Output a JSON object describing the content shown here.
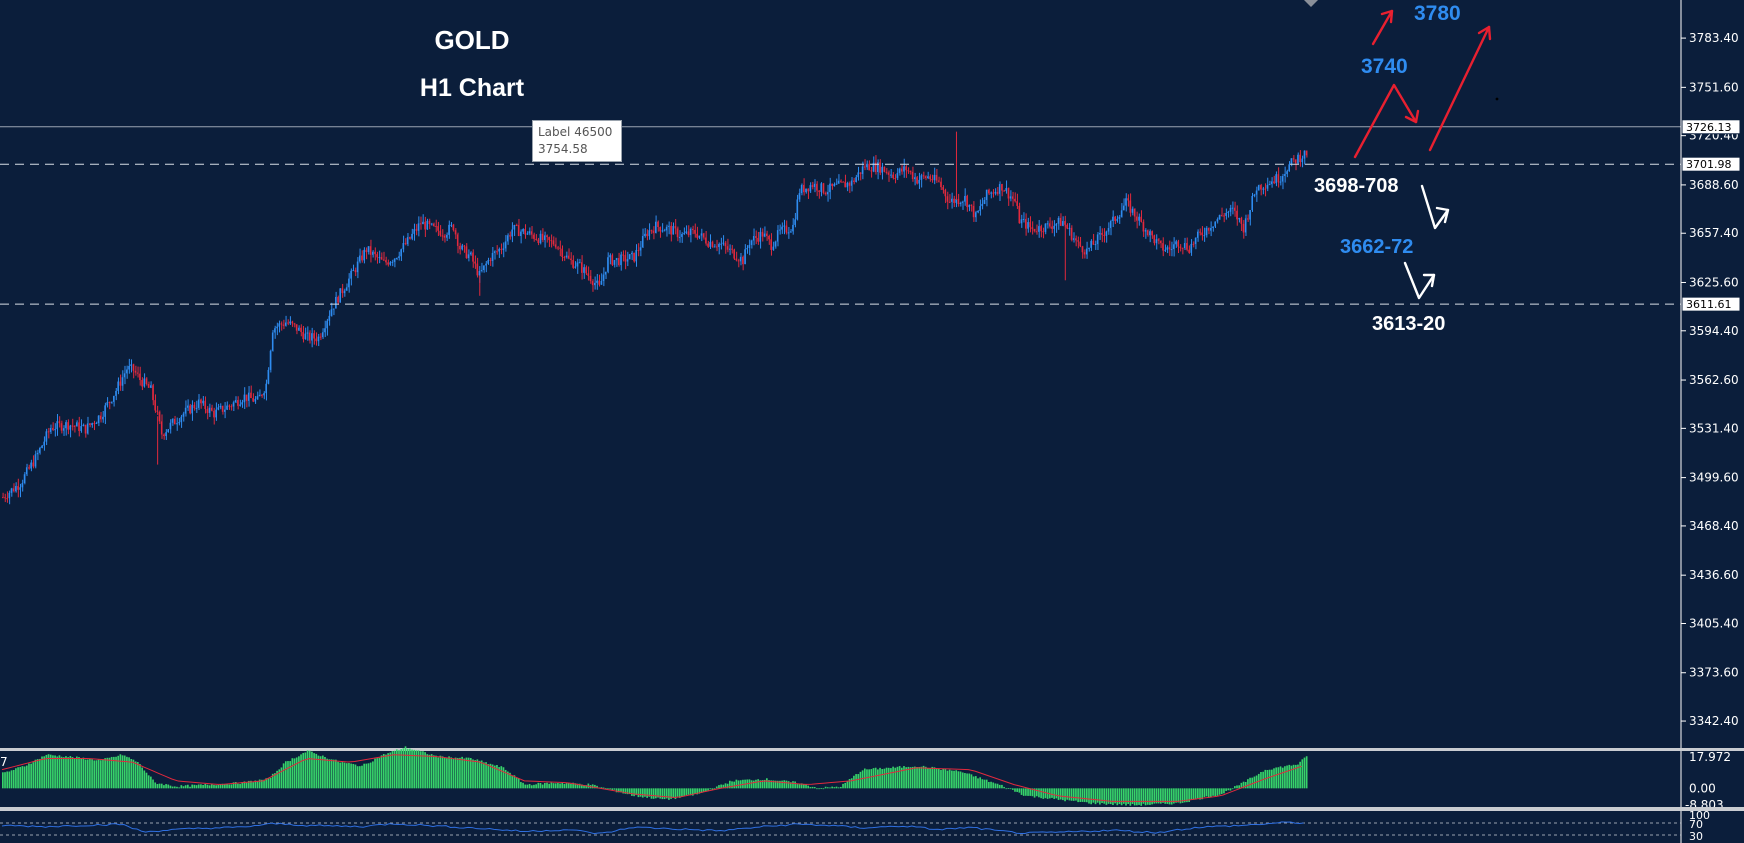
{
  "title": {
    "symbol": "GOLD",
    "timeframe": "H1 Chart"
  },
  "tooltip": {
    "label": "Label 46500",
    "value": "3754.58"
  },
  "annotations": {
    "target_3780": "3780",
    "target_3740": "3740",
    "level_3698": "3698-708",
    "level_3662": "3662-72",
    "level_3613": "3613-20"
  },
  "colors": {
    "background": "#0b1e3b",
    "bull": "#2f8cf0",
    "bear": "#e2293d",
    "histogram": "#37d36a",
    "signal": "#e2293d",
    "rsi": "#2f6fe0",
    "annotation_blue": "#2f8cf0",
    "arrow_red": "#e82030",
    "grid_dash": "#d8dde6"
  },
  "chart_data": [
    {
      "type": "candlestick",
      "symbol": "GOLD",
      "timeframe": "H1",
      "y_axis_ticks": [
        "3783.40",
        "3751.60",
        "3720.40",
        "3688.60",
        "3657.40",
        "3625.60",
        "3594.40",
        "3562.60",
        "3531.40",
        "3499.60",
        "3468.40",
        "3436.60",
        "3405.40",
        "3373.60",
        "3342.40"
      ],
      "ylim": [
        3325,
        3808
      ],
      "price_labels": {
        "current": "3726.13",
        "resistance": "3701.98",
        "support": "3611.61"
      },
      "horizontal_lines": [
        3726.13,
        3701.98,
        3611.61
      ],
      "close_path": [
        [
          0,
          3487
        ],
        [
          8,
          3496
        ],
        [
          15,
          3512
        ],
        [
          22,
          3532
        ],
        [
          30,
          3534
        ],
        [
          38,
          3531
        ],
        [
          45,
          3540
        ],
        [
          52,
          3556
        ],
        [
          57,
          3570
        ],
        [
          60,
          3569
        ],
        [
          63,
          3563
        ],
        [
          68,
          3556
        ],
        [
          73,
          3528
        ],
        [
          82,
          3540
        ],
        [
          90,
          3548
        ],
        [
          97,
          3541
        ],
        [
          104,
          3546
        ],
        [
          111,
          3552
        ],
        [
          117,
          3549
        ],
        [
          121,
          3560
        ],
        [
          124,
          3596
        ],
        [
          130,
          3600
        ],
        [
          135,
          3596
        ],
        [
          140,
          3590
        ],
        [
          145,
          3590
        ],
        [
          151,
          3609
        ],
        [
          160,
          3630
        ],
        [
          167,
          3647
        ],
        [
          175,
          3638
        ],
        [
          180,
          3642
        ],
        [
          186,
          3652
        ],
        [
          192,
          3664
        ],
        [
          198,
          3660
        ],
        [
          203,
          3658
        ],
        [
          207,
          3662
        ],
        [
          210,
          3648
        ],
        [
          215,
          3642
        ],
        [
          219,
          3630
        ],
        [
          224,
          3642
        ],
        [
          229,
          3648
        ],
        [
          234,
          3660
        ],
        [
          240,
          3658
        ],
        [
          245,
          3655
        ],
        [
          250,
          3652
        ],
        [
          254,
          3651
        ],
        [
          260,
          3640
        ],
        [
          265,
          3636
        ],
        [
          270,
          3629
        ],
        [
          274,
          3622
        ],
        [
          278,
          3640
        ],
        [
          283,
          3640
        ],
        [
          290,
          3642
        ],
        [
          296,
          3658
        ],
        [
          300,
          3662
        ],
        [
          306,
          3660
        ],
        [
          312,
          3656
        ],
        [
          318,
          3658
        ],
        [
          324,
          3652
        ],
        [
          330,
          3650
        ],
        [
          335,
          3645
        ],
        [
          340,
          3640
        ],
        [
          343,
          3652
        ],
        [
          349,
          3657
        ],
        [
          353,
          3650
        ],
        [
          357,
          3658
        ],
        [
          363,
          3662
        ],
        [
          366,
          3685
        ],
        [
          372,
          3689
        ],
        [
          378,
          3685
        ],
        [
          384,
          3688
        ],
        [
          390,
          3690
        ],
        [
          396,
          3701
        ],
        [
          403,
          3700
        ],
        [
          409,
          3695
        ],
        [
          415,
          3699
        ],
        [
          420,
          3692
        ],
        [
          425,
          3694
        ],
        [
          430,
          3690
        ],
        [
          435,
          3678
        ],
        [
          442,
          3680
        ],
        [
          447,
          3668
        ],
        [
          452,
          3682
        ],
        [
          459,
          3688
        ],
        [
          465,
          3678
        ],
        [
          467,
          3666
        ],
        [
          473,
          3660
        ],
        [
          480,
          3662
        ],
        [
          487,
          3665
        ],
        [
          494,
          3650
        ],
        [
          498,
          3646
        ],
        [
          504,
          3655
        ],
        [
          510,
          3665
        ],
        [
          516,
          3677
        ],
        [
          524,
          3662
        ],
        [
          532,
          3648
        ],
        [
          536,
          3647
        ],
        [
          540,
          3652
        ],
        [
          545,
          3648
        ],
        [
          549,
          3655
        ],
        [
          555,
          3663
        ],
        [
          561,
          3670
        ],
        [
          565,
          3672
        ],
        [
          570,
          3661
        ],
        [
          576,
          3687
        ],
        [
          581,
          3690
        ],
        [
          587,
          3694
        ],
        [
          590,
          3700
        ],
        [
          595,
          3706
        ],
        [
          600,
          3710
        ]
      ]
    },
    {
      "type": "bar",
      "name": "MACD",
      "y_axis_ticks": [
        "17.972",
        "0.00",
        "-8.803"
      ],
      "label_fragment": "7",
      "values_path": [
        [
          0,
          8
        ],
        [
          10,
          12
        ],
        [
          20,
          18
        ],
        [
          30,
          17
        ],
        [
          45,
          15
        ],
        [
          55,
          18
        ],
        [
          62,
          14
        ],
        [
          70,
          3
        ],
        [
          80,
          1
        ],
        [
          95,
          2
        ],
        [
          110,
          3
        ],
        [
          122,
          5
        ],
        [
          130,
          14
        ],
        [
          140,
          20
        ],
        [
          155,
          14
        ],
        [
          165,
          12
        ],
        [
          175,
          18
        ],
        [
          185,
          22
        ],
        [
          200,
          17
        ],
        [
          215,
          16
        ],
        [
          230,
          11
        ],
        [
          240,
          2
        ],
        [
          255,
          3
        ],
        [
          270,
          2
        ],
        [
          290,
          -4
        ],
        [
          305,
          -6
        ],
        [
          320,
          -3
        ],
        [
          335,
          4
        ],
        [
          350,
          5
        ],
        [
          365,
          3
        ],
        [
          375,
          0
        ],
        [
          385,
          1
        ],
        [
          395,
          10
        ],
        [
          420,
          12
        ],
        [
          440,
          9
        ],
        [
          460,
          1
        ],
        [
          470,
          -4
        ],
        [
          485,
          -6
        ],
        [
          500,
          -8
        ],
        [
          520,
          -9
        ],
        [
          540,
          -8
        ],
        [
          560,
          -3
        ],
        [
          570,
          3
        ],
        [
          580,
          10
        ],
        [
          595,
          13
        ],
        [
          600,
          18
        ]
      ],
      "signal_path": [
        [
          0,
          10
        ],
        [
          20,
          16
        ],
        [
          40,
          16
        ],
        [
          60,
          14
        ],
        [
          80,
          4
        ],
        [
          100,
          2
        ],
        [
          120,
          4
        ],
        [
          140,
          16
        ],
        [
          160,
          14
        ],
        [
          180,
          18
        ],
        [
          200,
          17
        ],
        [
          220,
          14
        ],
        [
          240,
          4
        ],
        [
          260,
          3
        ],
        [
          290,
          -3
        ],
        [
          310,
          -5
        ],
        [
          330,
          0
        ],
        [
          350,
          4
        ],
        [
          370,
          2
        ],
        [
          390,
          4
        ],
        [
          420,
          11
        ],
        [
          445,
          10
        ],
        [
          465,
          2
        ],
        [
          485,
          -4
        ],
        [
          510,
          -7
        ],
        [
          540,
          -7
        ],
        [
          560,
          -4
        ],
        [
          580,
          5
        ],
        [
          600,
          13
        ]
      ]
    },
    {
      "type": "line",
      "name": "RSI",
      "y_axis_ticks": [
        "100",
        "70",
        "30"
      ],
      "values_path": [
        [
          0,
          62
        ],
        [
          20,
          58
        ],
        [
          40,
          63
        ],
        [
          55,
          66
        ],
        [
          65,
          40
        ],
        [
          75,
          46
        ],
        [
          90,
          52
        ],
        [
          110,
          56
        ],
        [
          125,
          68
        ],
        [
          140,
          62
        ],
        [
          165,
          58
        ],
        [
          180,
          68
        ],
        [
          200,
          60
        ],
        [
          220,
          52
        ],
        [
          240,
          42
        ],
        [
          260,
          48
        ],
        [
          275,
          34
        ],
        [
          290,
          56
        ],
        [
          310,
          50
        ],
        [
          330,
          44
        ],
        [
          350,
          58
        ],
        [
          365,
          66
        ],
        [
          380,
          62
        ],
        [
          395,
          54
        ],
        [
          415,
          60
        ],
        [
          430,
          48
        ],
        [
          445,
          55
        ],
        [
          460,
          42
        ],
        [
          470,
          36
        ],
        [
          490,
          40
        ],
        [
          510,
          46
        ],
        [
          530,
          38
        ],
        [
          550,
          56
        ],
        [
          570,
          62
        ],
        [
          590,
          72
        ],
        [
          600,
          70
        ]
      ]
    }
  ]
}
